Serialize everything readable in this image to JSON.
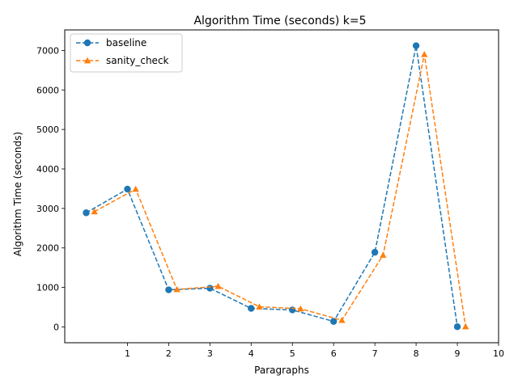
{
  "chart_data": {
    "type": "line",
    "title": "Algorithm Time (seconds) k=5",
    "xlabel": "Paragraphs",
    "ylabel": "Algorithm Time (seconds)",
    "xlim": [
      -0.52,
      10.0
    ],
    "ylim": [
      -400,
      7520
    ],
    "xticks": [
      1,
      2,
      3,
      4,
      5,
      6,
      7,
      8,
      9,
      10
    ],
    "yticks": [
      0,
      1000,
      2000,
      3000,
      4000,
      5000,
      6000,
      7000
    ],
    "grid": false,
    "legend_position": "top-left",
    "series": [
      {
        "name": "baseline",
        "color": "#1f77b4",
        "marker": "circle",
        "linestyle": "dashed",
        "x": [
          0,
          1,
          2,
          3,
          4,
          5,
          6,
          7,
          8,
          9
        ],
        "y": [
          2890,
          3490,
          940,
          980,
          470,
          430,
          140,
          1890,
          7120,
          5
        ]
      },
      {
        "name": "sanity_check",
        "color": "#ff7f0e",
        "marker": "triangle",
        "linestyle": "dashed",
        "x": [
          0.2,
          1.2,
          2.2,
          3.2,
          4.2,
          5.2,
          6.2,
          7.2,
          8.2,
          9.2
        ],
        "y": [
          2920,
          3490,
          950,
          1030,
          510,
          460,
          170,
          1820,
          6900,
          10
        ]
      }
    ]
  }
}
